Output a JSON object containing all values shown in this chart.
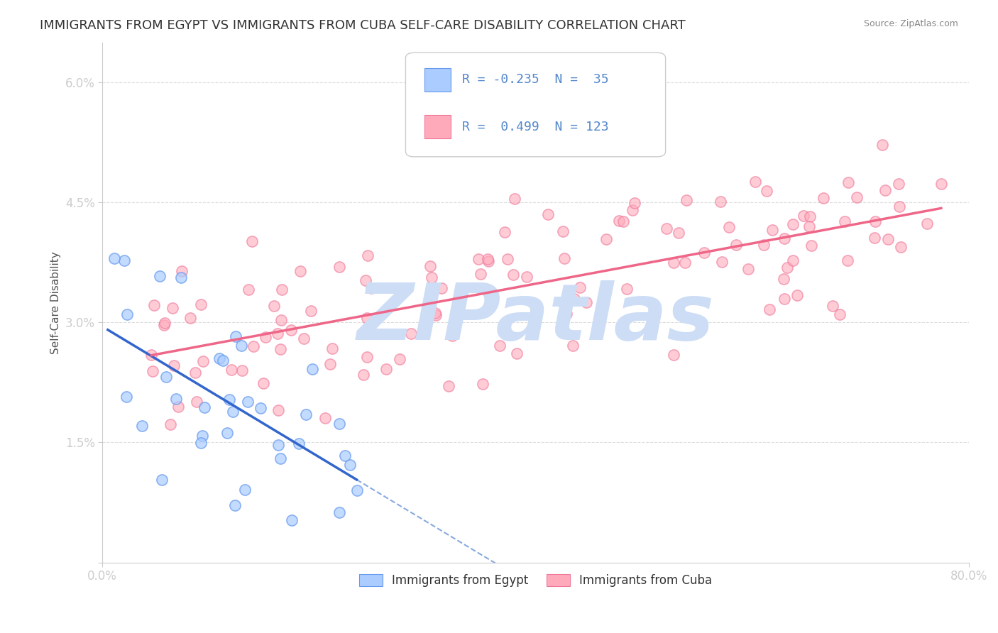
{
  "title": "IMMIGRANTS FROM EGYPT VS IMMIGRANTS FROM CUBA SELF-CARE DISABILITY CORRELATION CHART",
  "source": "Source: ZipAtlas.com",
  "ylabel": "Self-Care Disability",
  "xlim": [
    0.0,
    0.8
  ],
  "ylim": [
    0.0,
    0.065
  ],
  "yticks": [
    0.0,
    0.015,
    0.03,
    0.045,
    0.06
  ],
  "yticklabels": [
    "",
    "1.5%",
    "3.0%",
    "4.5%",
    "6.0%"
  ],
  "egypt_R": -0.235,
  "egypt_N": 35,
  "cuba_R": 0.499,
  "cuba_N": 123,
  "egypt_color": "#aaccff",
  "egypt_edge_color": "#6699ee",
  "cuba_color": "#ffaabb",
  "cuba_edge_color": "#ee7799",
  "egypt_line_color": "#3366cc",
  "egypt_dash_color": "#88aadd",
  "cuba_line_color": "#ee6688",
  "watermark": "ZIPatlas",
  "watermark_color": "#ccddf5",
  "background_color": "#ffffff",
  "grid_color": "#dddddd",
  "tick_color": "#5588cc",
  "title_fontsize": 13,
  "axis_label_fontsize": 11,
  "tick_fontsize": 12,
  "legend_label_color": "#333333",
  "legend_value_color": "#5588cc"
}
